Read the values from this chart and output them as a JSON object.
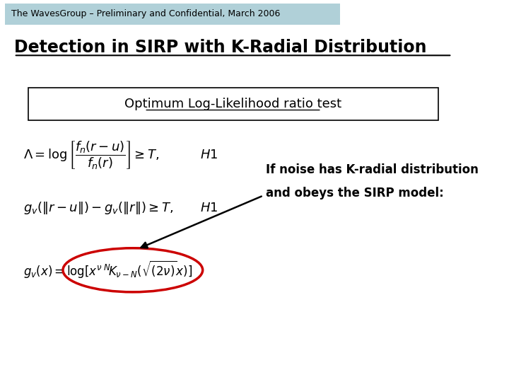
{
  "bg_color": "#ffffff",
  "header_bg": "#b0d0d8",
  "header_text": "The WavesGroup – Preliminary and Confidential, March 2006",
  "title": "Detection in SIRP with K-Radial Distribution",
  "box_label": "Optimum Log-Likelihood ratio test",
  "eq1": "$\\Lambda = \\log\\left[\\dfrac{f_n(r-u)}{f_n(r)}\\right] \\geq T,$",
  "eq1_H": "$H1$",
  "eq2": "$g_v(\\|r-u\\|) - g_v(\\|r\\|) \\geq T,$",
  "eq2_H": "$H1$",
  "eq3": "$g_v(x) = \\log[x^{\\nu}\\,{}^N\\!K_{\\nu-N}(\\sqrt{(2\\nu)}x)]$",
  "note_line1": "If noise has K-radial distribution",
  "note_line2": "and obeys the SIRP model:",
  "circle_color": "#cc0000",
  "arrow_color": "#000000"
}
